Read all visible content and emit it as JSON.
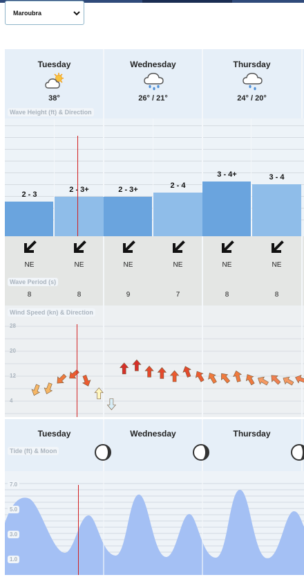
{
  "location": {
    "selected": "Maroubra"
  },
  "days": [
    {
      "name": "Tuesday",
      "temp": "38°",
      "icon": "partly-sunny-icon"
    },
    {
      "name": "Wednesday",
      "temp": "26° / 21°",
      "icon": "rain-cloud-icon"
    },
    {
      "name": "Thursday",
      "temp": "24° / 20°",
      "icon": "rain-cloud-icon"
    }
  ],
  "labels": {
    "wave_height": "Wave Height (ft) & Direction",
    "wave_period": "Wave Period (s)",
    "wind": "Wind Speed (kn) & Direction",
    "tide": "Tide (ft) & Moon"
  },
  "wave": {
    "columns": [
      {
        "height": "2 - 3",
        "dir": "NE",
        "period": "8",
        "level": 2.6
      },
      {
        "height": "2 - 3+",
        "dir": "NE",
        "period": "8",
        "level": 3.0
      },
      {
        "height": "2 - 3+",
        "dir": "NE",
        "period": "9",
        "level": 3.0
      },
      {
        "height": "2 - 4",
        "dir": "NE",
        "period": "7",
        "level": 3.3
      },
      {
        "height": "3 - 4+",
        "dir": "NE",
        "period": "8",
        "level": 4.1
      },
      {
        "height": "3 - 4",
        "dir": "NE",
        "period": "8",
        "level": 3.9
      }
    ]
  },
  "wind": {
    "ticks": [
      "28",
      "20",
      "12",
      "4"
    ],
    "points": [
      {
        "speed": 11,
        "color": "#f6b766"
      },
      {
        "speed": 12,
        "color": "#f6b766"
      },
      {
        "speed": 18,
        "color": "#ef7a3e"
      },
      {
        "speed": 21,
        "color": "#ec5b30"
      },
      {
        "speed": 17,
        "color": "#ec5b30"
      },
      {
        "speed": 9,
        "color": "#fff7bf"
      },
      {
        "speed": 2,
        "color": "#d8eef8"
      },
      {
        "speed": 25,
        "color": "#d62f28"
      },
      {
        "speed": 27,
        "color": "#d62f28"
      },
      {
        "speed": 23,
        "color": "#e3492c"
      },
      {
        "speed": 22,
        "color": "#e3492c"
      },
      {
        "speed": 20,
        "color": "#ec5b30"
      },
      {
        "speed": 23,
        "color": "#e3492c"
      },
      {
        "speed": 20,
        "color": "#ec5b30"
      },
      {
        "speed": 19,
        "color": "#ef7a3e"
      },
      {
        "speed": 19,
        "color": "#ef7a3e"
      },
      {
        "speed": 20,
        "color": "#ef7a3e"
      },
      {
        "speed": 18,
        "color": "#ef7a3e"
      },
      {
        "speed": 17,
        "color": "#f49a63"
      },
      {
        "speed": 18,
        "color": "#f08050"
      },
      {
        "speed": 17,
        "color": "#f49a63"
      },
      {
        "speed": 18,
        "color": "#f08050"
      }
    ]
  },
  "tide": {
    "days": [
      "Tuesday",
      "Wednesday",
      "Thursday"
    ],
    "ticks": [
      "7.0",
      "5.0",
      "3.0",
      "1.0"
    ],
    "moon_icon": "moon-phase-icon"
  },
  "colors": {
    "wave_bar_dark": "#6aa4de",
    "wave_bar_light": "#8fbde9",
    "tide_fill": "#a4c0f4",
    "now_line": "#d21f1f"
  }
}
